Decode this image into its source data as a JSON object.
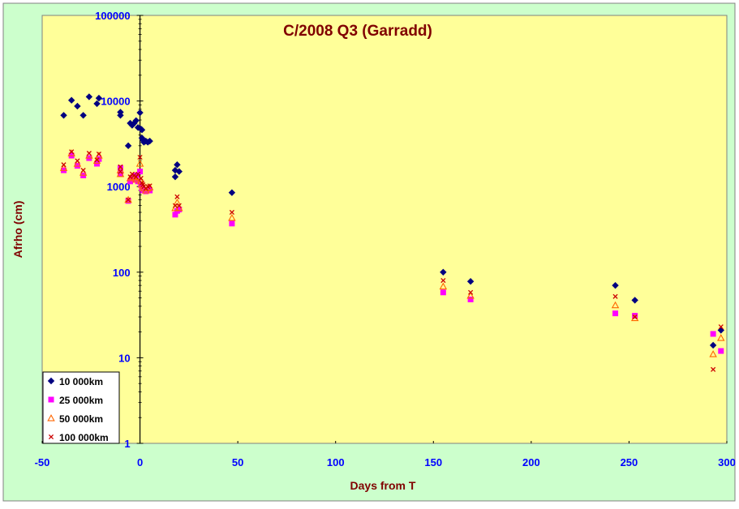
{
  "colors": {
    "chart_background": "#ccffcc",
    "plot_background": "#ffff99",
    "title_color": "#800000",
    "tick_label_color": "#0000ff",
    "series_10000": "#000080",
    "series_25000": "#ff00ff",
    "series_50000": "#ff6600",
    "series_100000": "#cc0000"
  },
  "chart_data": {
    "type": "scatter",
    "title": "C/2008 Q3 (Garradd)",
    "xlabel": "Days from T",
    "ylabel": "Afrho (cm)",
    "x_scale": "linear",
    "y_scale": "log",
    "xlim": [
      -50,
      300
    ],
    "ylim": [
      1,
      100000
    ],
    "x_ticks": [
      "-50",
      "0",
      "50",
      "100",
      "150",
      "200",
      "250",
      "300"
    ],
    "y_ticks": [
      "1",
      "10",
      "100",
      "1000",
      "10000",
      "100000"
    ],
    "grid": false,
    "legend_position": "bottom-left",
    "series": [
      {
        "name": "10 000km",
        "marker": "diamond",
        "points": [
          [
            -39,
            6800
          ],
          [
            -35,
            10200
          ],
          [
            -32,
            8700
          ],
          [
            -29,
            6800
          ],
          [
            -26,
            11200
          ],
          [
            -22,
            9300
          ],
          [
            -21,
            10800
          ],
          [
            -10,
            7400
          ],
          [
            -10,
            6800
          ],
          [
            -6,
            3000
          ],
          [
            -5,
            5500
          ],
          [
            -4,
            5200
          ],
          [
            -3,
            5500
          ],
          [
            -2,
            5900
          ],
          [
            -1,
            4900
          ],
          [
            0,
            7300
          ],
          [
            0.5,
            4700
          ],
          [
            1,
            4600
          ],
          [
            1,
            3700
          ],
          [
            1.5,
            3500
          ],
          [
            2,
            3300
          ],
          [
            3,
            3400
          ],
          [
            4,
            3300
          ],
          [
            5,
            3400
          ],
          [
            19,
            1800
          ],
          [
            18,
            1300
          ],
          [
            18,
            1550
          ],
          [
            20,
            1500
          ],
          [
            47,
            850
          ],
          [
            155,
            100
          ],
          [
            169,
            78
          ],
          [
            243,
            70
          ],
          [
            253,
            47
          ],
          [
            293,
            14
          ],
          [
            297,
            21
          ]
        ]
      },
      {
        "name": "25 000km",
        "marker": "square",
        "points": [
          [
            -39,
            1550
          ],
          [
            -35,
            2300
          ],
          [
            -32,
            1750
          ],
          [
            -29,
            1350
          ],
          [
            -26,
            2150
          ],
          [
            -22,
            1850
          ],
          [
            -21,
            2100
          ],
          [
            -10,
            1650
          ],
          [
            -10,
            1400
          ],
          [
            -6,
            680
          ],
          [
            -5,
            1150
          ],
          [
            -4,
            1250
          ],
          [
            -3,
            1200
          ],
          [
            -2,
            1350
          ],
          [
            -1,
            1150
          ],
          [
            0,
            1500
          ],
          [
            0.5,
            1050
          ],
          [
            1,
            950
          ],
          [
            1.5,
            900
          ],
          [
            2,
            920
          ],
          [
            3,
            880
          ],
          [
            4,
            920
          ],
          [
            5,
            900
          ],
          [
            18,
            470
          ],
          [
            19,
            520
          ],
          [
            20,
            540
          ],
          [
            47,
            370
          ],
          [
            155,
            58
          ],
          [
            169,
            48
          ],
          [
            243,
            33
          ],
          [
            253,
            31
          ],
          [
            293,
            19
          ],
          [
            297,
            12
          ]
        ]
      },
      {
        "name": "50 000km",
        "marker": "triangle",
        "points": [
          [
            -39,
            1650
          ],
          [
            -35,
            2450
          ],
          [
            -32,
            1850
          ],
          [
            -29,
            1450
          ],
          [
            -26,
            2300
          ],
          [
            -22,
            2000
          ],
          [
            -21,
            2300
          ],
          [
            -10,
            1550
          ],
          [
            -10,
            1400
          ],
          [
            -6,
            700
          ],
          [
            -5,
            1250
          ],
          [
            -4,
            1300
          ],
          [
            -3,
            1250
          ],
          [
            -2,
            1200
          ],
          [
            -1,
            1300
          ],
          [
            0,
            1850
          ],
          [
            0.5,
            1150
          ],
          [
            1,
            1050
          ],
          [
            1.5,
            1000
          ],
          [
            2,
            950
          ],
          [
            3,
            900
          ],
          [
            4,
            950
          ],
          [
            5,
            980
          ],
          [
            18,
            560
          ],
          [
            19,
            650
          ],
          [
            20,
            560
          ],
          [
            47,
            430
          ],
          [
            155,
            68
          ],
          [
            169,
            53
          ],
          [
            243,
            41
          ],
          [
            253,
            29
          ],
          [
            293,
            11
          ],
          [
            297,
            17
          ]
        ]
      },
      {
        "name": "100 000km",
        "marker": "x",
        "points": [
          [
            -39,
            1800
          ],
          [
            -35,
            2550
          ],
          [
            -32,
            2000
          ],
          [
            -29,
            1550
          ],
          [
            -26,
            2450
          ],
          [
            -22,
            2050
          ],
          [
            -21,
            2400
          ],
          [
            -10,
            1700
          ],
          [
            -10,
            1500
          ],
          [
            -6,
            700
          ],
          [
            -5,
            1300
          ],
          [
            -4,
            1400
          ],
          [
            -3,
            1350
          ],
          [
            -2,
            1300
          ],
          [
            -1,
            1400
          ],
          [
            0,
            2200
          ],
          [
            0.5,
            1250
          ],
          [
            1,
            1100
          ],
          [
            1.5,
            1050
          ],
          [
            2,
            1000
          ],
          [
            3,
            950
          ],
          [
            4,
            1000
          ],
          [
            5,
            1020
          ],
          [
            18,
            600
          ],
          [
            19,
            760
          ],
          [
            20,
            600
          ],
          [
            47,
            500
          ],
          [
            155,
            80
          ],
          [
            169,
            58
          ],
          [
            243,
            52
          ],
          [
            253,
            30
          ],
          [
            293,
            7.3
          ],
          [
            297,
            23
          ]
        ]
      }
    ]
  }
}
